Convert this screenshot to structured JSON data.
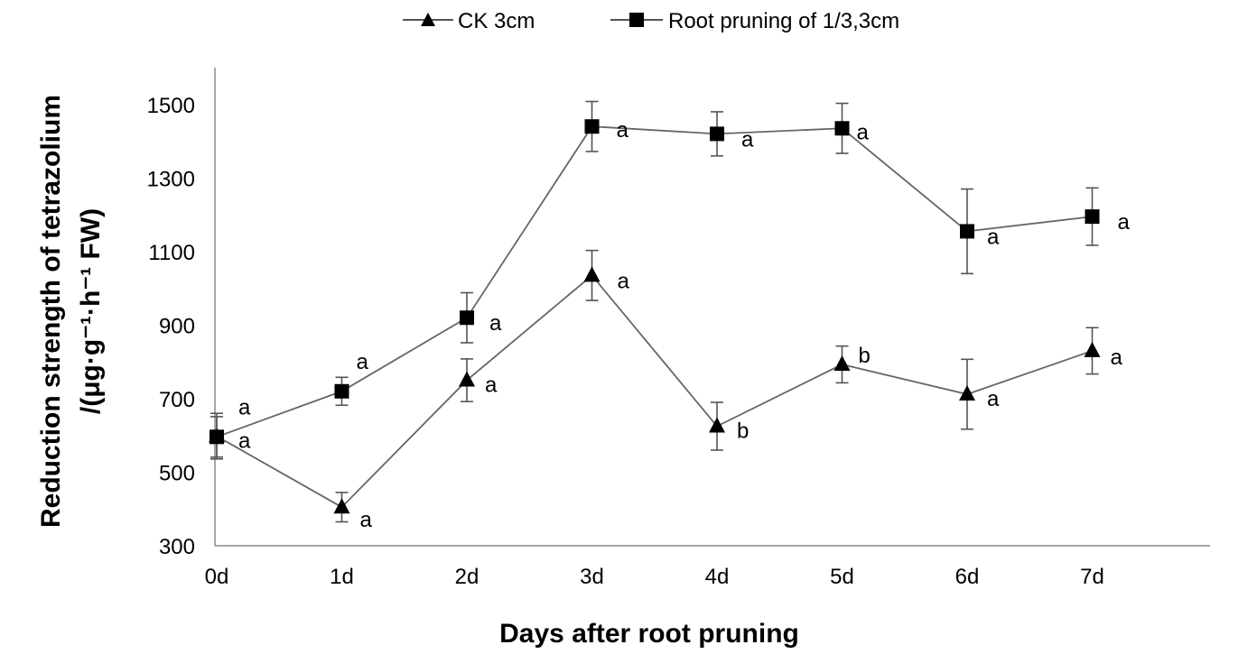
{
  "chart_data": {
    "type": "line",
    "title": "",
    "xlabel": "Days after root pruning",
    "ylabel_line1": "Reduction strength of tetrazolium",
    "ylabel_line2": "/(μg·g⁻¹·h⁻¹ FW)",
    "categories": [
      "0d",
      "1d",
      "2d",
      "3d",
      "4d",
      "5d",
      "6d",
      "7d"
    ],
    "ylim": [
      300,
      1600
    ],
    "yticks": [
      300,
      500,
      700,
      900,
      1100,
      1300,
      1500
    ],
    "legend_position": "top-center",
    "grid": false,
    "series": [
      {
        "name": "CK 3cm",
        "marker": "triangle",
        "values": [
          598,
          405,
          750,
          1035,
          625,
          793,
          712,
          830
        ],
        "errors": [
          62,
          40,
          58,
          68,
          65,
          50,
          95,
          63
        ],
        "significance": [
          "a",
          "a",
          "a",
          "a",
          "b",
          "b",
          "a",
          "a"
        ]
      },
      {
        "name": "Root pruning of 1/3,3cm",
        "marker": "square",
        "values": [
          596,
          720,
          920,
          1440,
          1420,
          1435,
          1155,
          1195
        ],
        "errors": [
          55,
          38,
          68,
          68,
          60,
          68,
          115,
          78
        ],
        "significance": [
          "a",
          "a",
          "a",
          "a",
          "a",
          "a",
          "a",
          "a"
        ]
      }
    ]
  }
}
